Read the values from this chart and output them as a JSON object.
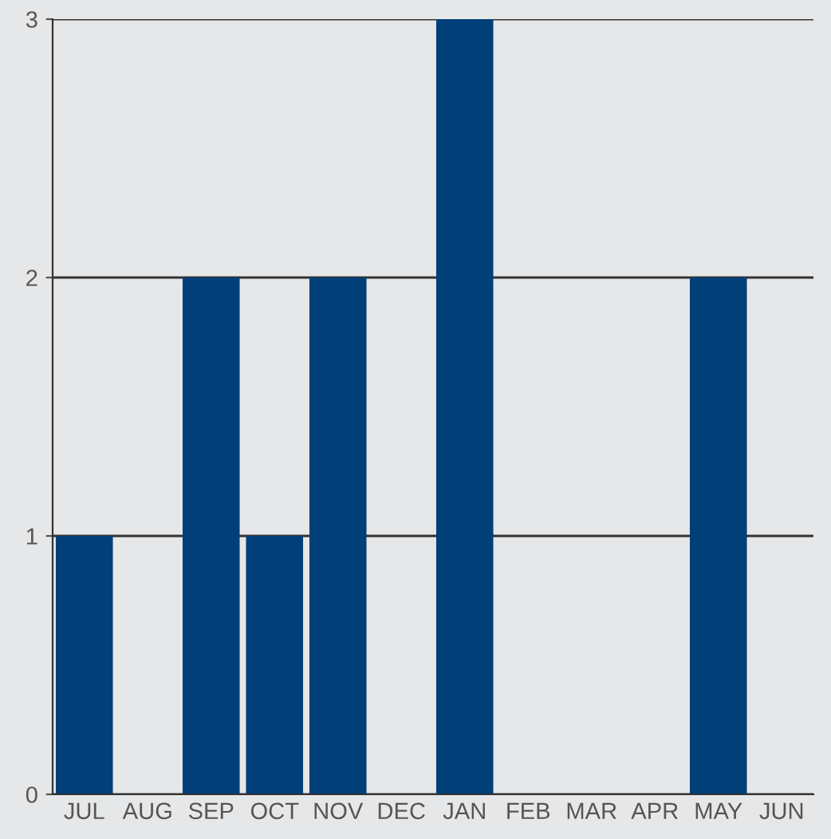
{
  "chart_data": {
    "type": "bar",
    "categories": [
      "JUL",
      "AUG",
      "SEP",
      "OCT",
      "NOV",
      "DEC",
      "JAN",
      "FEB",
      "MAR",
      "APR",
      "MAY",
      "JUN"
    ],
    "values": [
      1,
      0,
      2,
      1,
      2,
      0,
      3,
      0,
      0,
      0,
      2,
      0
    ],
    "color": "#003f78",
    "ylim": [
      0,
      3
    ],
    "yticks": [
      0,
      1,
      2,
      3
    ],
    "grid": "y"
  }
}
